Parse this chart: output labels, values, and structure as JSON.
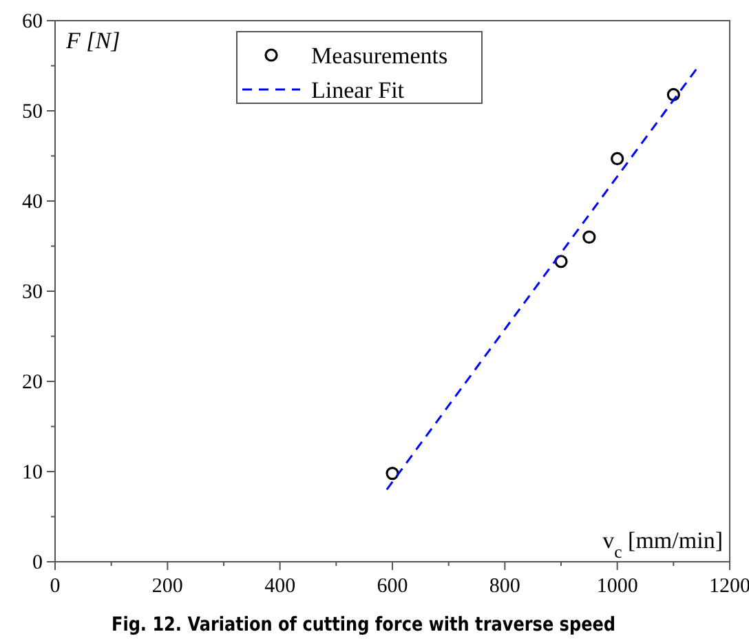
{
  "chart_data": {
    "type": "scatter",
    "title": "Fig. 12.  Variation of cutting force with traverse speed",
    "xlabel": "v$_{c}$ [mm/min]",
    "ylabel": "F [N]",
    "x": [
      600,
      900,
      950,
      1000,
      1100
    ],
    "series": [
      {
        "name": "Measurements",
        "color": "#000000",
        "marker": "circle",
        "values": [
          9.8,
          33.3,
          36.0,
          44.7,
          51.8
        ]
      },
      {
        "name": "Linear Fit",
        "type": "line",
        "color": "#0000ff",
        "line_style": "dashed",
        "marker": "none",
        "x": [
          590,
          1145
        ],
        "values": [
          8.0,
          55.0
        ]
      }
    ],
    "xlim": [
      0,
      1200
    ],
    "xticks": [
      0,
      {
        "value": 100,
        "label": null
      },
      200,
      {
        "value": 300,
        "label": null
      },
      400,
      {
        "value": 500,
        "label": null
      },
      600,
      {
        "value": 700,
        "label": null
      },
      800,
      {
        "value": 900,
        "label": null
      },
      1000,
      {
        "value": 1100,
        "label": null
      },
      1200
    ],
    "ylim": [
      0,
      60
    ],
    "yticks": [
      0,
      {
        "value": 5,
        "label": null
      },
      10,
      {
        "value": 15,
        "label": null
      },
      20,
      {
        "value": 25,
        "label": null
      },
      30,
      {
        "value": 35,
        "label": null
      },
      40,
      {
        "value": 45,
        "label": null
      },
      50,
      {
        "value": 55,
        "label": null
      },
      60
    ],
    "legend": "top",
    "grid": false
  }
}
